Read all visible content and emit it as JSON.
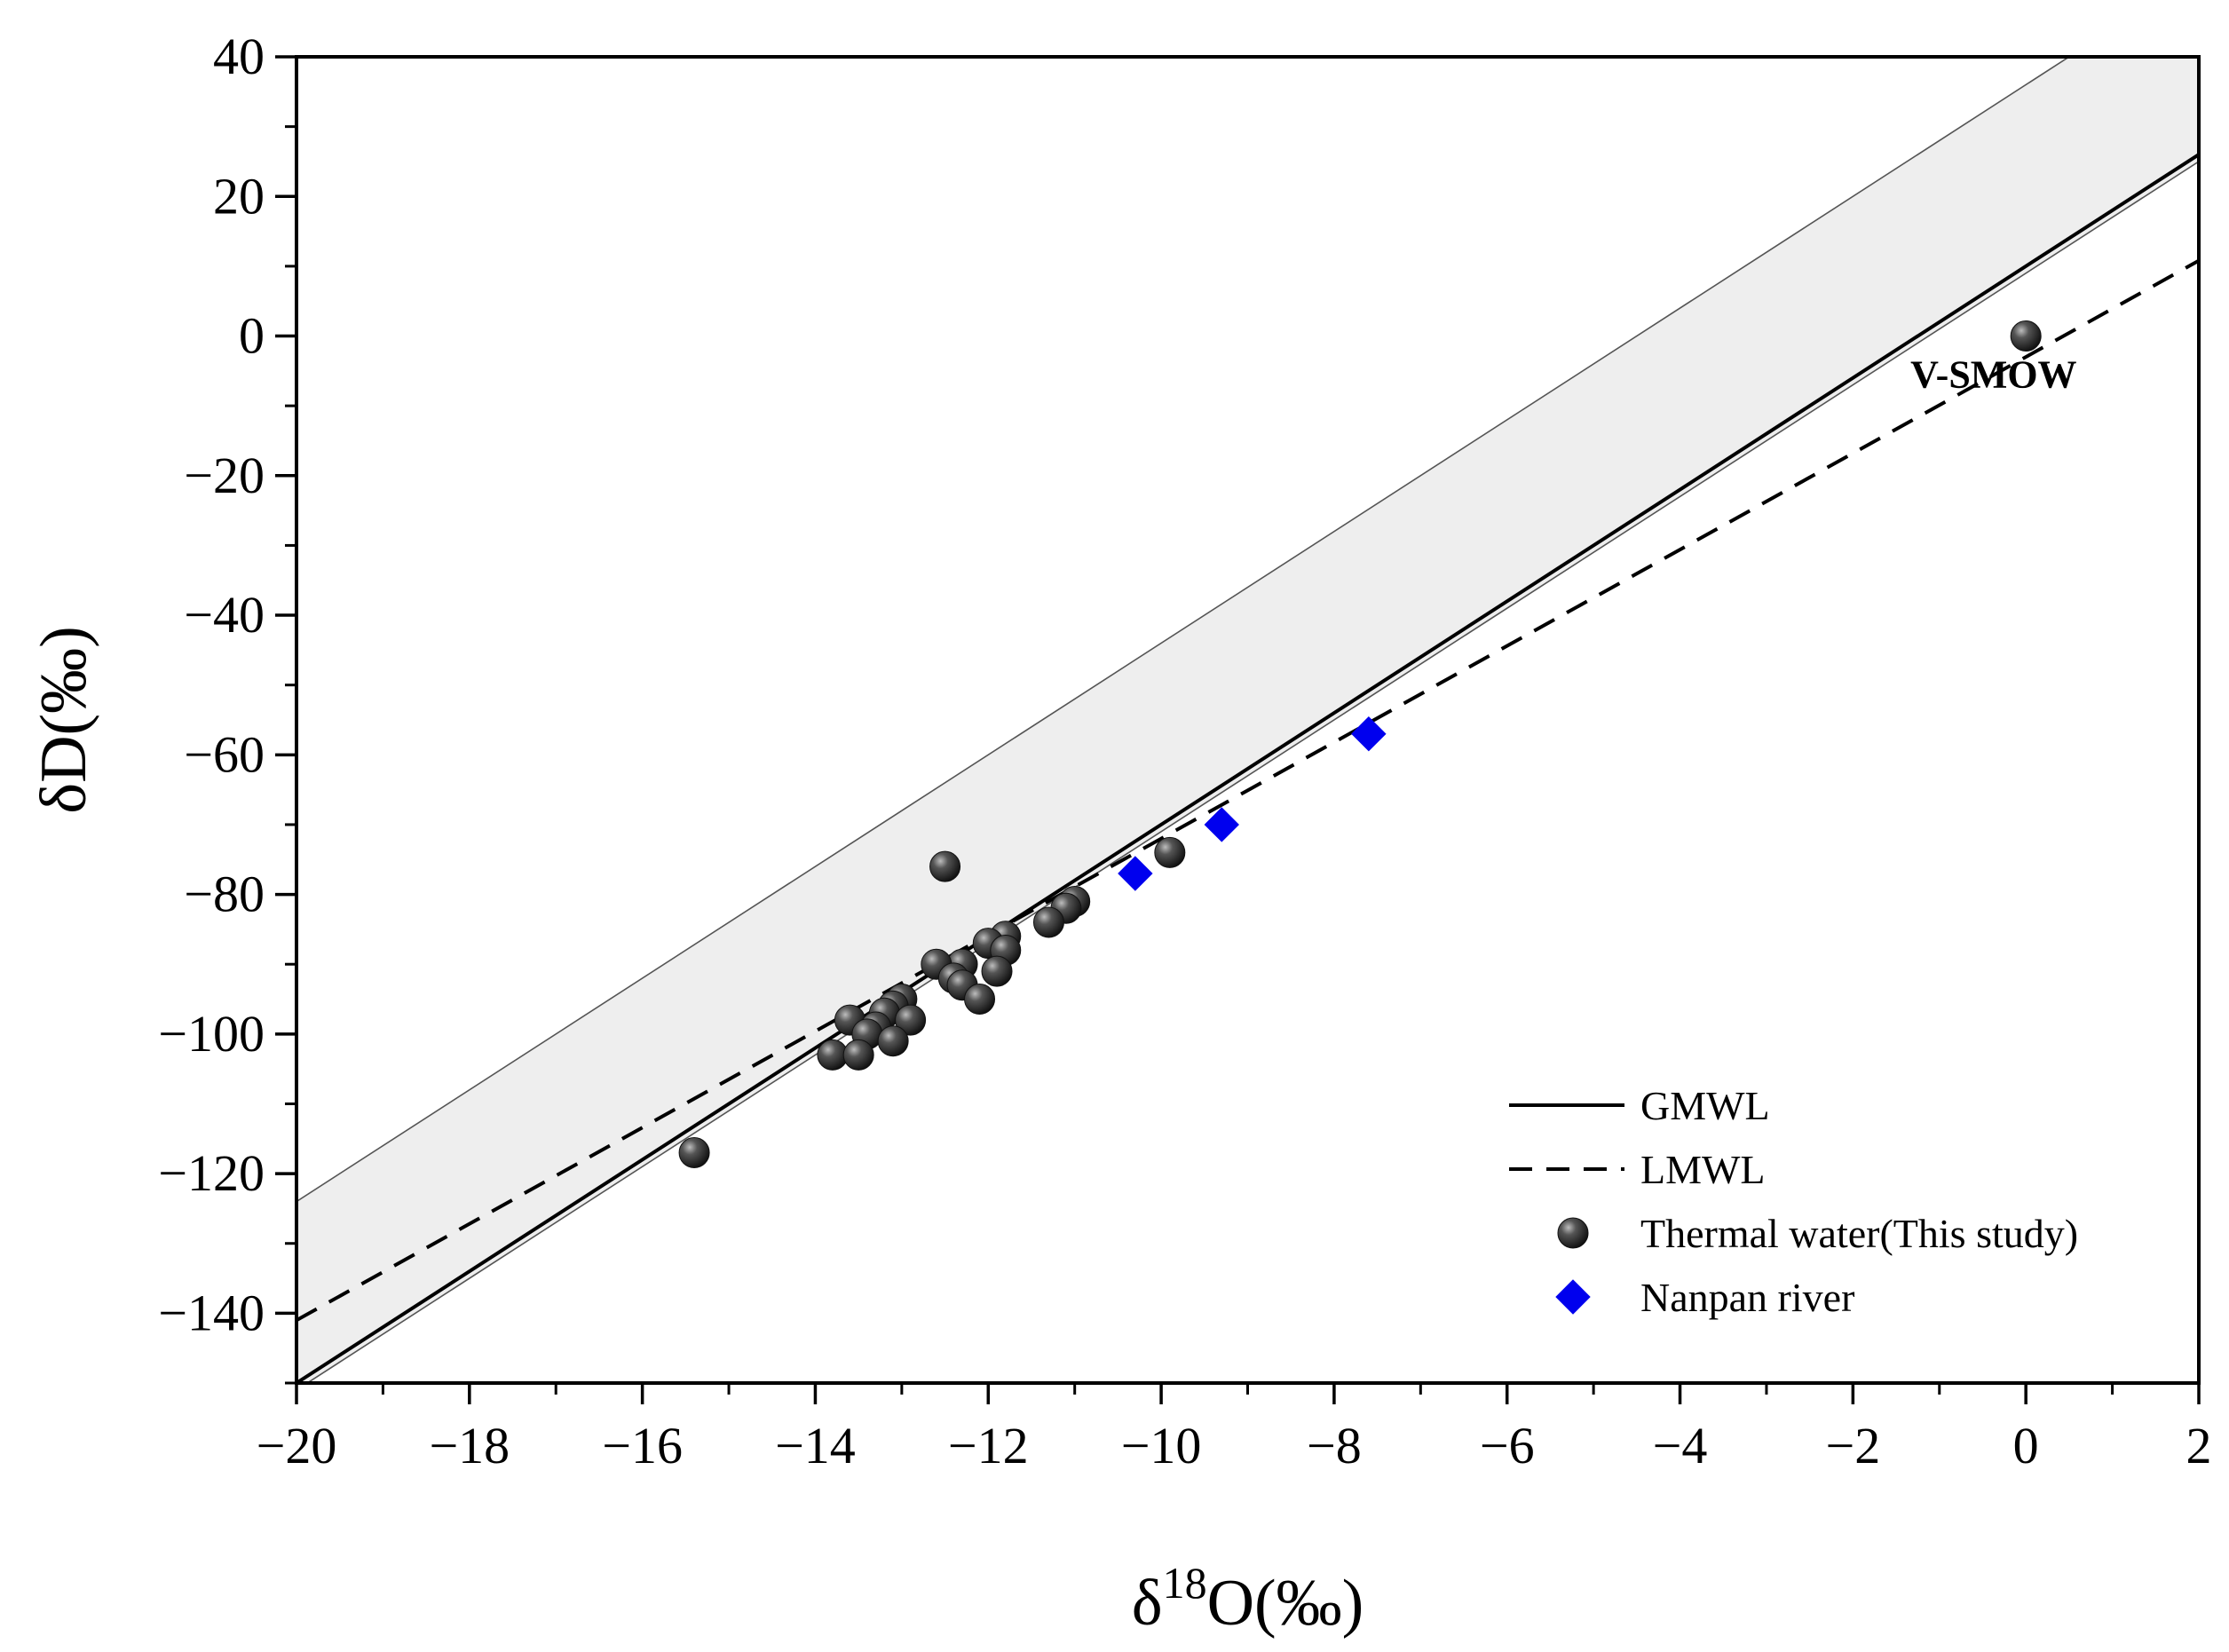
{
  "chart_data": {
    "type": "scatter",
    "title": "",
    "xlabel": "δ18O(‰)",
    "xlabel_parts": {
      "base": "δ",
      "sup": "18",
      "rest": "O(‰)"
    },
    "ylabel": "δD(‰)",
    "xlim": [
      -20,
      2
    ],
    "ylim": [
      -150,
      40
    ],
    "x_ticks": [
      -20,
      -18,
      -16,
      -14,
      -12,
      -10,
      -8,
      -6,
      -4,
      -2,
      0,
      2
    ],
    "x_tick_labels": [
      "−20",
      "−18",
      "−16",
      "−14",
      "−12",
      "−10",
      "−8",
      "−6",
      "−4",
      "−2",
      "0",
      "2"
    ],
    "y_ticks": [
      40,
      20,
      0,
      -20,
      -40,
      -60,
      -80,
      -100,
      -120,
      -140
    ],
    "y_tick_labels": [
      "40",
      "20",
      "0",
      "−20",
      "−40",
      "−60",
      "−80",
      "−100",
      "−120",
      "−140"
    ],
    "grid": false,
    "legend_position": "bottom-right",
    "band": {
      "label": "",
      "upper": {
        "slope": 8,
        "intercept": 36
      },
      "lower": {
        "slope": 8,
        "intercept": 9
      },
      "color": "#eeeeee"
    },
    "lines": [
      {
        "name": "GMWL",
        "slope": 8,
        "intercept": 10,
        "style": "solid",
        "color": "#000000"
      },
      {
        "name": "LMWL",
        "slope": 6.9,
        "intercept": -3,
        "style": "dashed",
        "color": "#000000"
      }
    ],
    "series": [
      {
        "name": "Thermal water(This study)",
        "marker": "sphere",
        "color": "#2a2a2a",
        "points": [
          [
            0,
            0
          ],
          [
            -15.4,
            -117
          ],
          [
            -12.5,
            -76
          ],
          [
            -9.9,
            -74
          ],
          [
            -11.0,
            -81
          ],
          [
            -11.1,
            -82
          ],
          [
            -11.3,
            -84
          ],
          [
            -11.8,
            -86
          ],
          [
            -12.0,
            -87
          ],
          [
            -11.8,
            -88
          ],
          [
            -12.3,
            -90
          ],
          [
            -12.6,
            -90
          ],
          [
            -11.9,
            -91
          ],
          [
            -12.4,
            -92
          ],
          [
            -12.3,
            -93
          ],
          [
            -12.1,
            -95
          ],
          [
            -13.0,
            -95
          ],
          [
            -13.1,
            -96
          ],
          [
            -13.2,
            -97
          ],
          [
            -12.9,
            -98
          ],
          [
            -13.6,
            -98
          ],
          [
            -13.3,
            -99
          ],
          [
            -13.4,
            -100
          ],
          [
            -13.1,
            -101
          ],
          [
            -13.8,
            -103
          ],
          [
            -13.5,
            -103
          ]
        ]
      },
      {
        "name": "Nanpan river",
        "marker": "diamond",
        "color": "#0000ee",
        "points": [
          [
            -10.3,
            -77
          ],
          [
            -9.3,
            -70
          ],
          [
            -7.6,
            -57
          ]
        ]
      }
    ],
    "annotations": [
      {
        "text": "V-SMOW",
        "x": 0,
        "y": 0
      }
    ]
  }
}
